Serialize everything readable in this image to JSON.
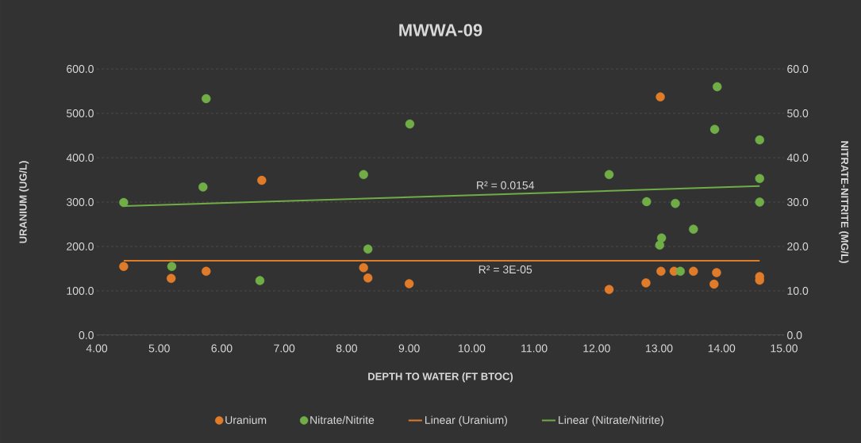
{
  "chart_data": {
    "type": "scatter",
    "title": "MWWA-09",
    "xlabel": "DEPTH TO WATER (FT BTOC)",
    "ylabel": "URANIUM (UG/L)",
    "y2label": "NITRATE-NITRITE (MG/L)",
    "xlim": [
      4,
      15
    ],
    "xticks": [
      {
        "value": 4,
        "label": "4.00"
      },
      {
        "value": 5,
        "label": "5.00"
      },
      {
        "value": 6,
        "label": "6.00"
      },
      {
        "value": 7,
        "label": "7.00"
      },
      {
        "value": 8,
        "label": "8.00"
      },
      {
        "value": 9,
        "label": "9.00"
      },
      {
        "value": 10,
        "label": "10.00"
      },
      {
        "value": 11,
        "label": "11.00"
      },
      {
        "value": 12,
        "label": "12.00"
      },
      {
        "value": 13,
        "label": "13.00"
      },
      {
        "value": 14,
        "label": "14.00"
      },
      {
        "value": 15,
        "label": "15.00"
      }
    ],
    "ylim": [
      0,
      600
    ],
    "yticks": [
      {
        "value": 0,
        "label": "0.0"
      },
      {
        "value": 100,
        "label": "100.0"
      },
      {
        "value": 200,
        "label": "200.0"
      },
      {
        "value": 300,
        "label": "300.0"
      },
      {
        "value": 400,
        "label": "400.0"
      },
      {
        "value": 500,
        "label": "500.0"
      },
      {
        "value": 600,
        "label": "600.0"
      }
    ],
    "y2lim": [
      0,
      60
    ],
    "y2ticks": [
      {
        "value": 0,
        "label": "0.0"
      },
      {
        "value": 10,
        "label": "10.0"
      },
      {
        "value": 20,
        "label": "20.0"
      },
      {
        "value": 30,
        "label": "30.0"
      },
      {
        "value": 40,
        "label": "40.0"
      },
      {
        "value": 50,
        "label": "50.0"
      },
      {
        "value": 60,
        "label": "60.0"
      }
    ],
    "grid": "y",
    "legend": "bottom",
    "marker": "circle",
    "annotations": [
      "R² = 0.0154",
      "R² = 3E-05"
    ],
    "series": [
      {
        "name": "Uranium",
        "type": "scatter",
        "color": "#e07b2a",
        "x": [
          4.43,
          5.19,
          5.75,
          6.61,
          6.64,
          8.27,
          8.34,
          9.0,
          12.2,
          12.79,
          13.02,
          13.03,
          13.24,
          13.55,
          13.88,
          13.92,
          14.61,
          14.61
        ],
        "values": [
          155,
          128,
          144,
          null,
          349,
          152,
          129,
          116,
          103,
          118,
          537,
          144,
          144,
          144,
          115,
          141,
          132,
          124
        ]
      },
      {
        "name": "Nitrate/Nitrite",
        "type": "scatter",
        "axis": "y2",
        "color": "#70ad47",
        "x": [
          4.43,
          5.2,
          5.7,
          5.75,
          6.61,
          8.27,
          8.34,
          9.01,
          12.2,
          12.8,
          13.01,
          13.04,
          13.26,
          13.34,
          13.55,
          13.89,
          13.93,
          14.61,
          14.61,
          14.61
        ],
        "values": [
          29.9,
          15.5,
          33.4,
          53.3,
          12.3,
          36.2,
          19.4,
          47.6,
          36.2,
          30.1,
          20.3,
          21.9,
          29.7,
          14.4,
          23.9,
          46.4,
          56.0,
          44.0,
          35.3,
          30.0
        ]
      },
      {
        "name": "Linear (Uranium)",
        "type": "line",
        "marker": "none",
        "color": "#e07b2a",
        "x": [
          4.43,
          14.61
        ],
        "values": [
          168,
          168
        ]
      },
      {
        "name": "Linear (Nitrate/Nitrite)",
        "type": "line",
        "marker": "none",
        "axis": "y2",
        "color": "#70ad47",
        "x": [
          4.43,
          14.61
        ],
        "values": [
          29.1,
          33.6
        ]
      }
    ]
  }
}
